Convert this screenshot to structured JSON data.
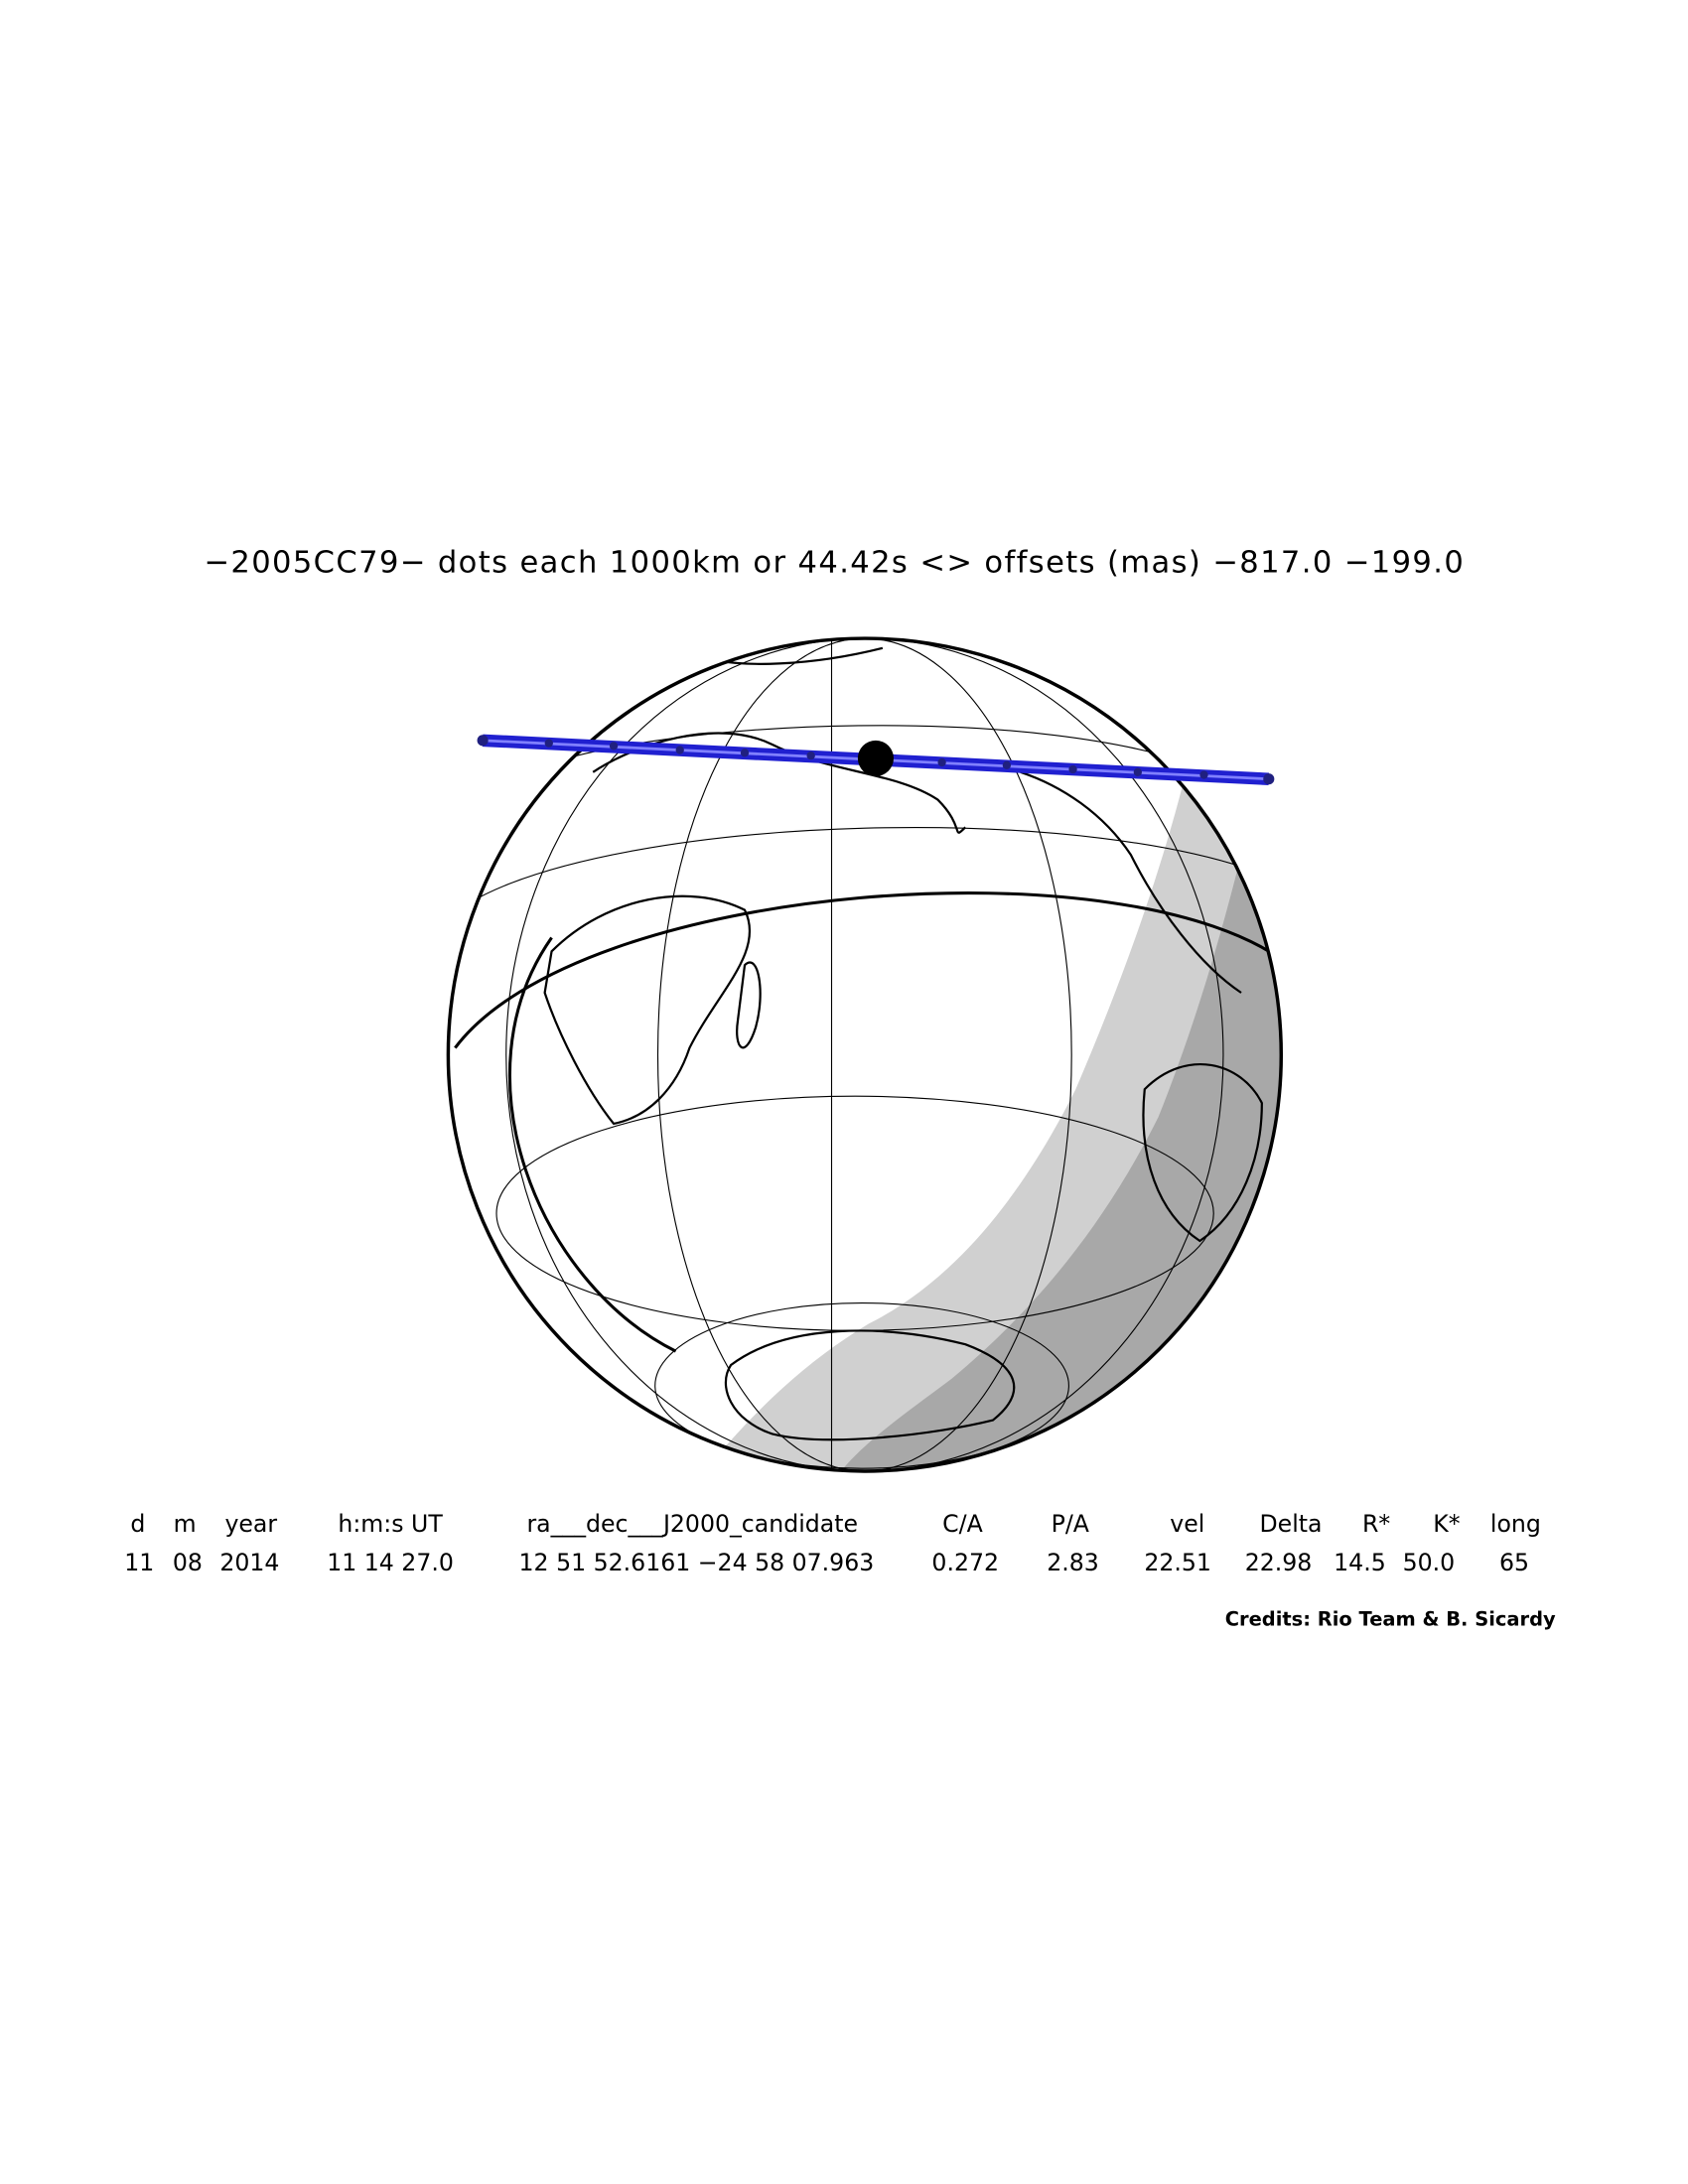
{
  "title": "−2005CC79− dots each 1000km or 44.42s <> offsets (mas) −817.0 −199.0",
  "table": {
    "header": [
      "d",
      "m",
      "year",
      "h:m:s UT",
      "ra___dec___J2000_candidate",
      "C/A",
      "P/A",
      "vel",
      "Delta",
      "R*",
      "K*",
      "long"
    ],
    "rows": [
      [
        "11",
        "08",
        "2014",
        "11 14 27.0",
        "12 51 52.6161 −24 58 07.963",
        "0.272",
        "2.83",
        "22.51",
        "22.98",
        "14.5",
        "50.0",
        "65"
      ]
    ]
  },
  "credits": "Credits: Rio Team & B. Sicardy"
}
